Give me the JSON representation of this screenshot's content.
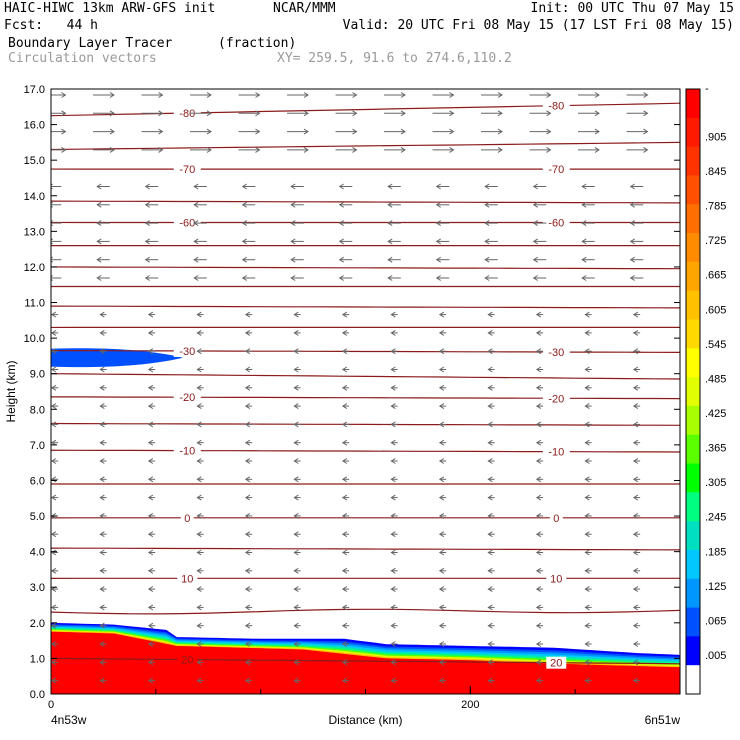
{
  "header": {
    "model": "HAIC-HIWC 13km ARW-GFS init",
    "org": "NCAR/MMM",
    "init": "Init: 00 UTC Thu 07 May 15",
    "fcst": "Fcst:   44 h",
    "valid": "Valid: 20 UTC Fri 08 May 15 (17 LST Fri 08 May 15)",
    "field": "Boundary Layer Tracer",
    "units": "(fraction)",
    "vectors": "Circulation vectors",
    "xy": "XY= 259.5, 91.6 to 274.6,110.2"
  },
  "chart_data": {
    "type": "heatmap",
    "title": "Boundary Layer Tracer",
    "ylabel": "Height (km)",
    "xlabel": "Distance (km)",
    "ylim": [
      0,
      17
    ],
    "xlim": [
      0,
      300
    ],
    "y_ticks": [
      "0.0",
      "1.0",
      "2.0",
      "3.0",
      "4.0",
      "5.0",
      "6.0",
      "7.0",
      "8.0",
      "9.0",
      "10.0",
      "11.0",
      "12.0",
      "13.0",
      "14.0",
      "15.0",
      "16.0",
      "17.0"
    ],
    "x_ticks": [
      {
        "value": 0,
        "label": "0"
      },
      {
        "value": 200,
        "label": "200"
      }
    ],
    "x_end_labels": {
      "left": "4n53w",
      "right": "6n51w"
    },
    "colorbar": {
      "labels": [
        "-",
        ".905",
        ".845",
        ".785",
        ".725",
        ".665",
        ".605",
        ".545",
        ".485",
        ".425",
        ".365",
        ".305",
        ".245",
        ".185",
        ".125",
        ".065",
        ".005"
      ],
      "colors": [
        "#ff0000",
        "#ff1a00",
        "#ff3300",
        "#ff5000",
        "#ff6e00",
        "#ff8c00",
        "#ffa500",
        "#ffc000",
        "#ffd800",
        "#ffff00",
        "#e1ff00",
        "#a8ff00",
        "#5cff00",
        "#00ff00",
        "#00ff80",
        "#00e0c0",
        "#00c8ff",
        "#0096ff",
        "#0050ff",
        "#0000ff",
        "#ffffff"
      ]
    },
    "tracer_regions": [
      {
        "name": "boundary layer",
        "top_km": [
          [
            0,
            2.0
          ],
          [
            30,
            1.95
          ],
          [
            55,
            1.8
          ],
          [
            60,
            1.6
          ],
          [
            100,
            1.55
          ],
          [
            140,
            1.55
          ],
          [
            160,
            1.4
          ],
          [
            200,
            1.35
          ],
          [
            240,
            1.3
          ],
          [
            280,
            1.15
          ],
          [
            300,
            1.1
          ]
        ],
        "core_top_km": [
          [
            0,
            1.75
          ],
          [
            30,
            1.7
          ],
          [
            60,
            1.35
          ],
          [
            120,
            1.25
          ],
          [
            160,
            1.0
          ],
          [
            200,
            0.95
          ],
          [
            240,
            0.85
          ],
          [
            300,
            0.75
          ]
        ]
      },
      {
        "name": "upper patch",
        "x_km": [
          0,
          63
        ],
        "center_km": 9.45,
        "half_depth_km": 0.25
      }
    ],
    "isotherms_c": [
      {
        "label": "-80",
        "y_km": [
          16.25,
          16.6
        ]
      },
      {
        "label": "",
        "y_km": [
          15.3,
          15.5
        ]
      },
      {
        "label": "-70",
        "y_km": [
          14.75,
          14.75
        ]
      },
      {
        "label": "",
        "y_km": [
          13.85,
          13.8
        ]
      },
      {
        "label": "-60",
        "y_km": [
          13.25,
          13.25
        ]
      },
      {
        "label": "",
        "y_km": [
          12.6,
          12.6
        ]
      },
      {
        "label": "",
        "y_km": [
          12.0,
          11.95
        ]
      },
      {
        "label": "",
        "y_km": [
          11.45,
          11.45
        ]
      },
      {
        "label": "",
        "y_km": [
          10.9,
          10.85
        ]
      },
      {
        "label": "",
        "y_km": [
          10.3,
          10.3
        ]
      },
      {
        "label": "-30",
        "y_km": [
          9.65,
          9.6
        ]
      },
      {
        "label": "",
        "y_km": [
          9.0,
          8.85
        ]
      },
      {
        "label": "-20",
        "y_km": [
          8.35,
          8.3
        ]
      },
      {
        "label": "",
        "y_km": [
          7.6,
          7.55
        ]
      },
      {
        "label": "-10",
        "y_km": [
          6.85,
          6.8
        ]
      },
      {
        "label": "",
        "y_km": [
          5.9,
          5.9
        ]
      },
      {
        "label": "0",
        "y_km": [
          4.95,
          4.95
        ]
      },
      {
        "label": "",
        "y_km": [
          4.1,
          4.05
        ]
      },
      {
        "label": "10",
        "y_km": [
          3.25,
          3.25
        ]
      },
      {
        "label": "",
        "y_km": [
          2.3,
          2.35
        ]
      },
      {
        "label": "20",
        "y_km": [
          1.0,
          0.85
        ]
      }
    ],
    "vectors": [
      {
        "y_range_km": [
          15.0,
          17.0
        ],
        "direction": "east",
        "length_km": 10
      },
      {
        "y_range_km": [
          11.5,
          14.5
        ],
        "direction": "west",
        "length_km": 6
      },
      {
        "y_range_km": [
          0.3,
          11.0
        ],
        "direction": "west",
        "length_km": 3
      }
    ]
  }
}
